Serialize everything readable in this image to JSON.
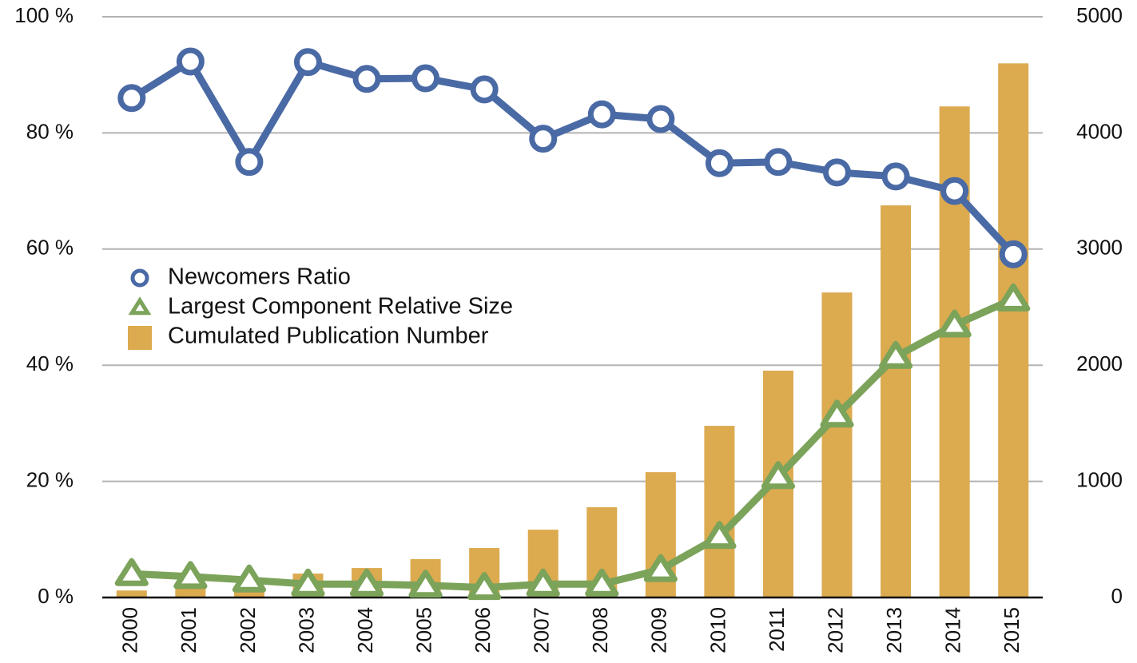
{
  "chart_data": {
    "type": "combo",
    "categories": [
      "2000",
      "2001",
      "2002",
      "2003",
      "2004",
      "2005",
      "2006",
      "2007",
      "2008",
      "2009",
      "2010",
      "2011",
      "2012",
      "2013",
      "2014",
      "2015"
    ],
    "series": [
      {
        "name": "Newcomers Ratio",
        "type": "line",
        "marker": "circle",
        "color": "#4a6aa5",
        "axis": "y",
        "values": [
          86.0,
          92.3,
          75.0,
          92.2,
          89.3,
          89.4,
          87.5,
          79.0,
          83.2,
          82.4,
          74.8,
          75.0,
          73.2,
          72.5,
          70.0,
          59.1
        ]
      },
      {
        "name": "Largest Component Relative Size",
        "type": "line",
        "marker": "triangle",
        "color": "#7ca35a",
        "axis": "y",
        "values": [
          4.1,
          3.6,
          3.0,
          2.3,
          2.3,
          2.1,
          1.7,
          2.3,
          2.3,
          4.8,
          10.5,
          20.8,
          31.4,
          41.5,
          46.9,
          51.4
        ]
      },
      {
        "name": "Cumulated Publication Number",
        "type": "bar",
        "color": "#dcaa4f",
        "axis": "y2",
        "values": [
          60,
          80,
          100,
          206,
          254,
          330,
          426,
          584,
          777,
          1079,
          1478,
          1953,
          2626,
          3376,
          4228,
          4599
        ]
      }
    ],
    "ylim": [
      0,
      100
    ],
    "yticks": [
      {
        "value": 0,
        "label": "0 %"
      },
      {
        "value": 20,
        "label": "20 %"
      },
      {
        "value": 40,
        "label": "40 %"
      },
      {
        "value": 60,
        "label": "60 %"
      },
      {
        "value": 80,
        "label": "80 %"
      },
      {
        "value": 100,
        "label": "100 %"
      }
    ],
    "y2lim": [
      0,
      5000
    ],
    "y2ticks": [
      0,
      1000,
      2000,
      3000,
      4000,
      5000
    ],
    "grid": true,
    "legend": "left"
  }
}
